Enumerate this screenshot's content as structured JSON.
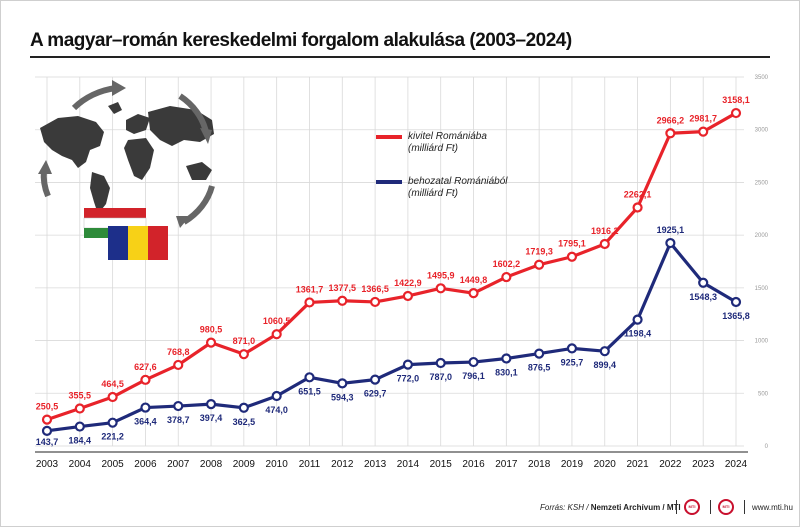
{
  "title": "A magyar–román kereskedelmi forgalom alakulása (2003–2024)",
  "legend": {
    "export_label_line1": "kivitel Romániába",
    "export_label_line2": "(milliárd Ft)",
    "import_label_line1": "behozatal Romániából",
    "import_label_line2": "(milliárd Ft)"
  },
  "footer": {
    "source_prefix": "Forrás: KSH / ",
    "source_bold": "Nemzeti Archívum / MTI",
    "site": "www.mti.hu"
  },
  "colors": {
    "export": "#e8232a",
    "import": "#1f2a7a",
    "grid": "#d9d9d9",
    "flag_hu_red": "#d2232a",
    "flag_hu_green": "#2e8b3a",
    "flag_ro_blue": "#1d2f8a",
    "flag_ro_yellow": "#f7d117",
    "flag_ro_red": "#d2232a"
  },
  "icons": [
    "world-map-icon",
    "circular-arrows-icon",
    "hungary-flag-icon",
    "romania-flag-icon"
  ],
  "chart_data": {
    "type": "line",
    "title": "A magyar–román kereskedelmi forgalom alakulása (2003–2024)",
    "xlabel": "",
    "ylabel": "",
    "ylim": [
      0,
      3500
    ],
    "yticks": [
      0,
      500,
      1000,
      1500,
      2000,
      2500,
      3000,
      3500
    ],
    "grid": true,
    "legend_position": "top-left",
    "x": [
      "2003",
      "2004",
      "2005",
      "2006",
      "2007",
      "2008",
      "2009",
      "2010",
      "2011",
      "2012",
      "2013",
      "2014",
      "2015",
      "2016",
      "2017",
      "2018",
      "2019",
      "2020",
      "2021",
      "2022",
      "2023",
      "2024"
    ],
    "series": [
      {
        "name": "kivitel Romániába (milliárd Ft)",
        "key": "export",
        "values": [
          250.5,
          355.5,
          464.5,
          627.6,
          768.8,
          980.5,
          871.0,
          1060.5,
          1361.7,
          1377.5,
          1366.5,
          1422.9,
          1495.9,
          1449.8,
          1602.2,
          1719.3,
          1795.1,
          1916.2,
          2262.1,
          2966.2,
          2981.7,
          3158.1
        ],
        "labels": [
          "250,5",
          "355,5",
          "464,5",
          "627,6",
          "768,8",
          "980,5",
          "871,0",
          "1060,5",
          "1361,7",
          "1377,5",
          "1366,5",
          "1422,9",
          "1495,9",
          "1449,8",
          "1602,2",
          "1719,3",
          "1795,1",
          "1916,2",
          "2262,1",
          "2966,2",
          "2981,7",
          "3158,1"
        ]
      },
      {
        "name": "behozatal Romániából (milliárd Ft)",
        "key": "import",
        "values": [
          143.7,
          184.4,
          221.2,
          364.4,
          378.7,
          397.4,
          362.5,
          474.0,
          651.5,
          594.3,
          629.7,
          772.0,
          787.0,
          796.1,
          830.1,
          876.5,
          925.7,
          899.4,
          1198.4,
          1925.1,
          1548.3,
          1365.8
        ],
        "labels": [
          "143,7",
          "184,4",
          "221,2",
          "364,4",
          "378,7",
          "397,4",
          "362,5",
          "474,0",
          "651,5",
          "594,3",
          "629,7",
          "772,0",
          "787,0",
          "796,1",
          "830,1",
          "876,5",
          "925,7",
          "899,4",
          "1198,4",
          "1925,1",
          "1548,3",
          "1365,8"
        ]
      }
    ]
  }
}
